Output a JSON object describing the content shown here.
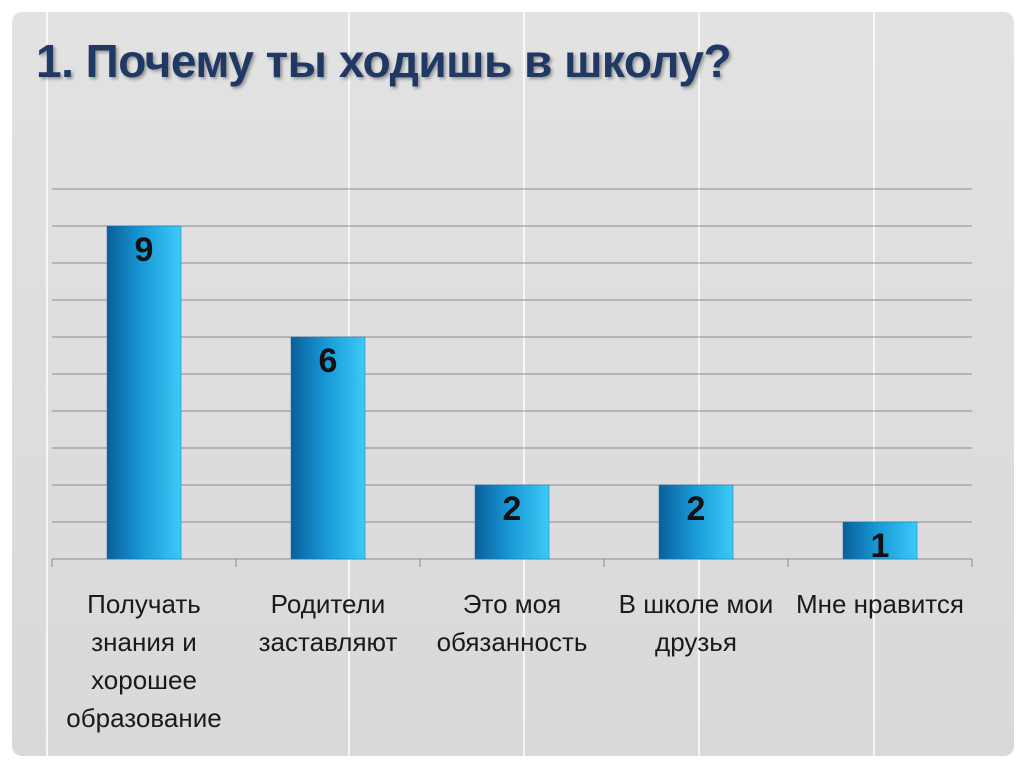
{
  "slide": {
    "title": "1. Почему ты ходишь в школу?"
  },
  "colors": {
    "title": "#1f3864",
    "bar_dark": "#0a6aa8",
    "bar_mid": "#1aa3de",
    "bar_light": "#35c5f5",
    "grid": "#8c8c8c"
  },
  "chart_data": {
    "type": "bar",
    "title": "1. Почему ты ходишь в школу?",
    "categories": [
      [
        "Получать",
        "знания и",
        "хорошее",
        "образование"
      ],
      [
        "Родители",
        "заставляют"
      ],
      [
        "Это моя",
        "обязанность"
      ],
      [
        "В школе мои",
        "друзья"
      ],
      [
        "Мне нравится"
      ]
    ],
    "values": [
      9,
      6,
      2,
      2,
      1
    ],
    "data_labels": [
      "9",
      "6",
      "2",
      "2",
      "1"
    ],
    "ylim": [
      0,
      10
    ],
    "grid": true,
    "legend": "none",
    "xlabel": "",
    "ylabel": ""
  }
}
